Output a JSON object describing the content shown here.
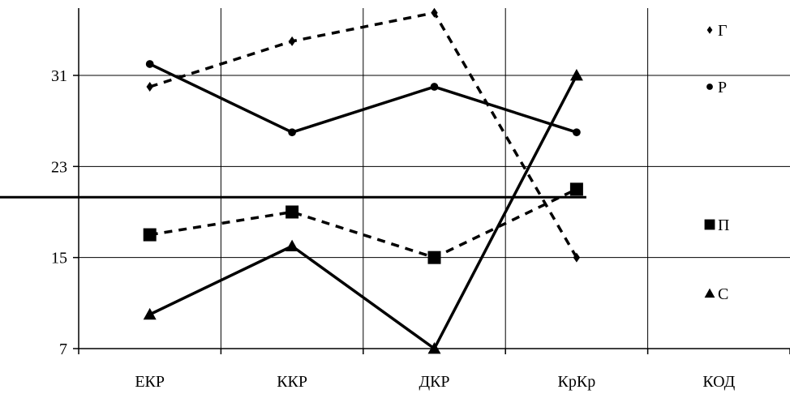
{
  "chart_data": {
    "type": "line",
    "categories": [
      "ЕКР",
      "ККР",
      "ДКР",
      "КрКр",
      "КОД"
    ],
    "y_ticks": [
      7,
      15,
      23,
      31
    ],
    "ylim": [
      7,
      36.5
    ],
    "grid": true,
    "legend_position": "right",
    "reference_line": 20.3,
    "series": [
      {
        "name": "Г",
        "marker": "diamond",
        "dashed": true,
        "values": [
          30,
          34,
          36.5,
          15,
          null
        ]
      },
      {
        "name": "Р",
        "marker": "circle",
        "dashed": false,
        "values": [
          32,
          26,
          30,
          26,
          null
        ]
      },
      {
        "name": "П",
        "marker": "square",
        "dashed": true,
        "values": [
          17,
          19,
          15,
          21,
          null
        ]
      },
      {
        "name": "С",
        "marker": "triangle",
        "dashed": false,
        "values": [
          10,
          16,
          7,
          31,
          null
        ]
      }
    ]
  }
}
